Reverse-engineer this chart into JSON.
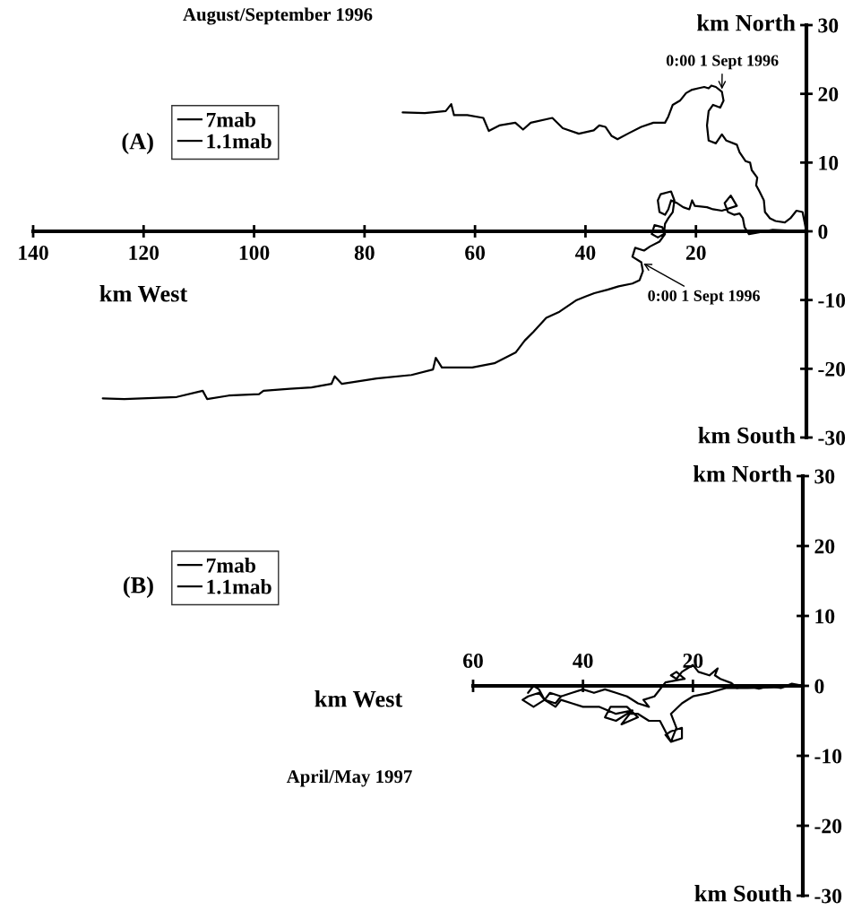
{
  "chart_data": [
    {
      "type": "line",
      "title": "August/September 1996",
      "xlabel": "km West",
      "ylabel": "km North",
      "legend": "top left",
      "annotations": [
        "(A)",
        "km South",
        {
          "text": "0:00 1 Sept 1996",
          "x": 15.3,
          "y": 20.3
        },
        {
          "text": "0:00 1 Sept 1996",
          "x": 29.9,
          "y": -4.5
        }
      ],
      "xlim": [
        140,
        0
      ],
      "xticks": [
        140,
        120,
        100,
        80,
        60,
        40,
        20
      ],
      "ylim": [
        -30,
        30
      ],
      "yticks": [
        30,
        20,
        10,
        0,
        -10,
        -20,
        -30
      ],
      "grid": false,
      "line_style": "solid",
      "series": [
        {
          "name": "7mab",
          "color": "#000000",
          "x": [
            0,
            0.7,
            1.8,
            2.9,
            3.9,
            5.6,
            6.6,
            7.5,
            7.7,
            8.5,
            9.1,
            8.9,
            9.9,
            10.2,
            11,
            12.1,
            12.6,
            14.5,
            15.3,
            16.4,
            17.7,
            18,
            17.7,
            16.9,
            15.6,
            15,
            15.3,
            16.4,
            17.2,
            17.7,
            18.5,
            19.6,
            20.7,
            21.8,
            22.9,
            24.2,
            25,
            25.6,
            27.7,
            29.9,
            32.1,
            34.2,
            35.3,
            36.4,
            37.5,
            38.5,
            41.2,
            44.1,
            46,
            49.9,
            51.3,
            52.7,
            55.6,
            57.5,
            58.5,
            61.4,
            63.8,
            64.3,
            65.3,
            69.1,
            73.1
          ],
          "values": [
            0,
            2.8,
            3,
            1.9,
            1.3,
            1.5,
            1.9,
            2.8,
            4.5,
            5.8,
            6.7,
            7.8,
            8.9,
            10,
            10.2,
            11.5,
            12.6,
            13.2,
            14.1,
            12.8,
            13.2,
            15.4,
            17.5,
            18.4,
            18,
            19,
            20.3,
            21,
            21.2,
            20.8,
            21,
            20.8,
            20.6,
            20.1,
            19,
            18.4,
            16.7,
            15.8,
            15.8,
            15.2,
            14.3,
            13.4,
            13.9,
            15.2,
            15.4,
            14.7,
            14.2,
            15,
            16.5,
            15.8,
            14.8,
            15.8,
            15.4,
            14.6,
            16.5,
            16.9,
            16.9,
            18.5,
            17.5,
            17.2,
            17.3
          ]
        },
        {
          "name": "1.1mab",
          "color": "#000000",
          "x": [
            0,
            6.1,
            10.4,
            11.2,
            11.5,
            12.1,
            13.1,
            14.2,
            14.8,
            13.7,
            12.6,
            15.3,
            16.9,
            18,
            20.2,
            20.7,
            21.2,
            22.3,
            23.4,
            24.5,
            25,
            25.6,
            26.6,
            26.9,
            26.4,
            24.5,
            23.9,
            24.2,
            25,
            25.6,
            25.8,
            26.9,
            28,
            27.5,
            26.1,
            25.6,
            26.6,
            28.3,
            29.4,
            31,
            31.5,
            29.9,
            29.6,
            30.2,
            31.5,
            34,
            36,
            38.4,
            40,
            41.6,
            44.7,
            47.1,
            49.4,
            51,
            52.6,
            56.5,
            60.5,
            66,
            67.1,
            67.6,
            71.5,
            77.8,
            84.1,
            85.4,
            86,
            89.6,
            93.5,
            98.3,
            99.1,
            104.6,
            108.5,
            109.3,
            114,
            123.5,
            127.4
          ],
          "values": [
            0,
            0.2,
            -0.4,
            0.6,
            1.9,
            2.6,
            2.4,
            2.8,
            4.1,
            5.2,
            3.7,
            3,
            3.2,
            3.5,
            3.7,
            4.5,
            3.2,
            3.5,
            4.1,
            4.5,
            3.2,
            2.4,
            2.8,
            4.5,
            5.4,
            5.8,
            4.5,
            2.8,
            1.9,
            1.1,
            -0.4,
            -0.9,
            -0.4,
            0.9,
            0.6,
            -0.4,
            -1.5,
            -2.2,
            -2.8,
            -2.4,
            -3.7,
            -4.5,
            -5.8,
            -7.1,
            -7.6,
            -8,
            -8.5,
            -9,
            -9.5,
            -10,
            -11.7,
            -12.6,
            -14.6,
            -15.9,
            -17.6,
            -19.2,
            -19.8,
            -19.8,
            -18.4,
            -20.1,
            -20.9,
            -21.4,
            -22.2,
            -21.1,
            -22.2,
            -22.7,
            -22.9,
            -23.2,
            -23.7,
            -23.9,
            -24.4,
            -23.2,
            -24.1,
            -24.4,
            -24.3
          ]
        }
      ]
    },
    {
      "type": "line",
      "title": "April/May 1997",
      "xlabel": "km West",
      "ylabel": "km North",
      "legend": "top left",
      "annotations": [
        "(B)",
        "km South"
      ],
      "xlim": [
        60,
        0
      ],
      "xticks": [
        60,
        40,
        20
      ],
      "ylim": [
        -30,
        30
      ],
      "yticks": [
        30,
        20,
        10,
        0,
        -10,
        -20,
        -30
      ],
      "grid": false,
      "line_style": "solid",
      "series": [
        {
          "name": "7mab",
          "color": "#000000",
          "x": [
            0,
            2,
            4,
            6,
            8,
            10,
            12,
            13,
            15,
            16,
            15.5,
            17,
            19,
            20,
            21,
            22,
            23,
            24,
            23,
            21.5,
            25,
            27,
            29,
            28,
            30,
            32,
            34,
            36,
            38,
            40,
            42,
            44,
            46,
            47,
            45,
            44
          ],
          "values": [
            0,
            0.3,
            -0.3,
            0,
            -0.4,
            0,
            -0.3,
            0.4,
            1,
            1.5,
            2.5,
            1.5,
            2,
            3,
            2.5,
            2,
            1,
            1.5,
            2,
            1,
            0.5,
            -1.5,
            -2,
            -3,
            -2.5,
            -1.5,
            -1,
            -0.5,
            -1,
            -0.5,
            -1,
            -1.5,
            -1,
            -2,
            -2.5,
            -1.5
          ]
        },
        {
          "name": "1.1mab",
          "color": "#000000",
          "x": [
            0,
            5,
            10,
            14,
            17,
            20,
            22,
            24,
            23,
            24,
            22,
            22,
            24,
            25,
            24,
            26,
            28,
            30,
            32,
            34,
            36,
            35,
            32,
            30,
            33,
            31,
            34,
            37,
            40,
            42,
            44,
            45,
            47,
            48,
            50,
            51,
            49,
            47,
            48,
            49,
            50
          ],
          "values": [
            0,
            -0.2,
            -0.3,
            -0.3,
            -1,
            -1.5,
            -2.5,
            -4,
            -6,
            -8,
            -7.5,
            -6,
            -6.5,
            -7,
            -8,
            -5,
            -5,
            -4,
            -4,
            -5,
            -4.5,
            -3,
            -3,
            -4.5,
            -5.5,
            -3.5,
            -4,
            -3,
            -3,
            -2.5,
            -2,
            -3,
            -2,
            -1,
            -1.5,
            -2,
            -3,
            -2,
            -0.5,
            0,
            -1
          ]
        }
      ]
    }
  ]
}
